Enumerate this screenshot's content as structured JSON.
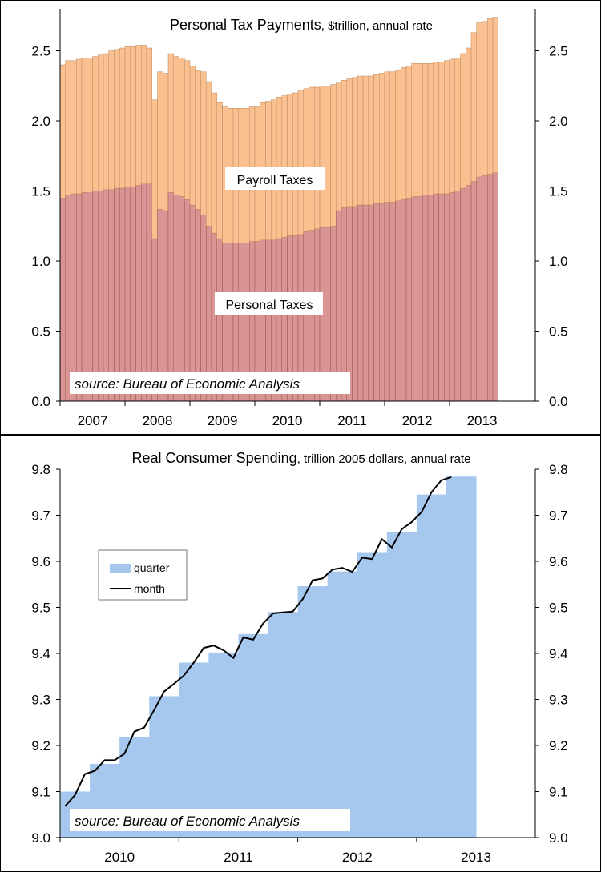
{
  "charts": [
    {
      "title_main": "Personal Tax Payments",
      "title_sub": ", $trillion, annual rate",
      "source": "source: Bureau of Economic Analysis",
      "label_payroll": "Payroll Taxes",
      "label_personal": "Personal Taxes",
      "colors": {
        "personal": "#d99594",
        "payroll": "#fac090",
        "edge": "#a0504c"
      }
    },
    {
      "title_main": "Real Consumer Spending",
      "title_sub": ", trillion 2005 dollars, annual rate",
      "source": "source: Bureau of Economic Analysis",
      "legend_quarter": "quarter",
      "legend_month": "month",
      "colors": {
        "quarter": "#a6c8ef",
        "month": "#000000"
      }
    }
  ],
  "chart_data": [
    {
      "type": "bar",
      "stacked": true,
      "title": "Personal Tax Payments, $trillion, annual rate",
      "x_tick_labels": [
        "2007",
        "2008",
        "2009",
        "2010",
        "2011",
        "2012",
        "2013"
      ],
      "y_ticks": [
        "0.0",
        "0.5",
        "1.0",
        "1.5",
        "2.0",
        "2.5"
      ],
      "ylim": [
        0,
        2.8
      ],
      "months_per_year": 12,
      "start": "2007-01",
      "series": [
        {
          "name": "Personal Taxes",
          "values": [
            1.45,
            1.47,
            1.48,
            1.48,
            1.49,
            1.49,
            1.5,
            1.5,
            1.51,
            1.51,
            1.52,
            1.52,
            1.53,
            1.53,
            1.54,
            1.55,
            1.55,
            1.16,
            1.37,
            1.36,
            1.49,
            1.47,
            1.46,
            1.44,
            1.4,
            1.37,
            1.33,
            1.25,
            1.2,
            1.16,
            1.13,
            1.13,
            1.13,
            1.13,
            1.13,
            1.14,
            1.14,
            1.15,
            1.15,
            1.15,
            1.16,
            1.17,
            1.18,
            1.18,
            1.19,
            1.21,
            1.22,
            1.23,
            1.24,
            1.24,
            1.25,
            1.36,
            1.38,
            1.39,
            1.39,
            1.4,
            1.4,
            1.4,
            1.41,
            1.41,
            1.42,
            1.42,
            1.43,
            1.44,
            1.45,
            1.46,
            1.46,
            1.47,
            1.47,
            1.48,
            1.48,
            1.48,
            1.49,
            1.5,
            1.52,
            1.54,
            1.57,
            1.6,
            1.61,
            1.62,
            1.63
          ]
        },
        {
          "name": "Payroll Taxes",
          "values": [
            0.95,
            0.96,
            0.95,
            0.96,
            0.96,
            0.96,
            0.96,
            0.97,
            0.97,
            0.99,
            0.99,
            1.0,
            1.0,
            1.0,
            1.0,
            0.99,
            0.97,
            0.99,
            0.98,
            0.98,
            0.99,
            0.99,
            0.99,
            0.99,
            0.99,
            0.99,
            1.02,
            1.03,
            1.0,
            0.97,
            0.97,
            0.96,
            0.96,
            0.96,
            0.96,
            0.96,
            0.96,
            0.98,
            0.99,
            1.0,
            1.01,
            1.01,
            1.01,
            1.02,
            1.03,
            1.02,
            1.02,
            1.01,
            1.01,
            1.01,
            1.01,
            0.91,
            0.91,
            0.91,
            0.92,
            0.92,
            0.92,
            0.92,
            0.92,
            0.93,
            0.93,
            0.93,
            0.93,
            0.94,
            0.94,
            0.95,
            0.95,
            0.94,
            0.94,
            0.94,
            0.94,
            0.95,
            0.95,
            0.95,
            0.96,
            0.98,
            1.06,
            1.1,
            1.1,
            1.11,
            1.11
          ]
        }
      ]
    },
    {
      "type": "area",
      "title": "Real Consumer Spending, trillion 2005 dollars, annual rate",
      "x_tick_labels": [
        "2010",
        "2011",
        "2012",
        "2013"
      ],
      "y_ticks": [
        "9.0",
        "9.1",
        "9.2",
        "9.3",
        "9.4",
        "9.5",
        "9.6",
        "9.7",
        "9.8"
      ],
      "ylim": [
        9.0,
        9.8
      ],
      "start": "2010-01",
      "series": [
        {
          "name": "quarter",
          "values": [
            9.1,
            9.16,
            9.218,
            9.307,
            9.38,
            9.402,
            9.442,
            9.49,
            9.546,
            9.578,
            9.62,
            9.663,
            9.745,
            9.784
          ]
        },
        {
          "name": "month",
          "values": [
            9.068,
            9.092,
            9.138,
            9.145,
            9.168,
            9.168,
            9.182,
            9.23,
            9.239,
            9.277,
            9.317,
            9.334,
            9.352,
            9.38,
            9.412,
            9.417,
            9.407,
            9.39,
            9.435,
            9.43,
            9.465,
            9.487,
            9.489,
            9.491,
            9.518,
            9.559,
            9.563,
            9.582,
            9.586,
            9.577,
            9.608,
            9.605,
            9.648,
            9.63,
            9.67,
            9.685,
            9.707,
            9.75,
            9.776,
            9.783
          ]
        }
      ]
    }
  ]
}
